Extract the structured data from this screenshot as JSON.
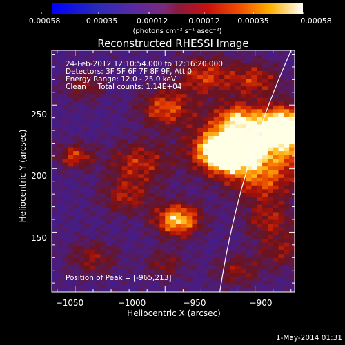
{
  "colorbar": {
    "ticks": [
      "−0.00058",
      "−0.00035",
      "−0.00012",
      "0.00012",
      "0.00035",
      "0.00058"
    ],
    "units": "(photons cm⁻² s⁻¹ asec⁻²)"
  },
  "chart_data": {
    "type": "heatmap",
    "title": "Reconstructed RHESSI Image",
    "xlabel": "Heliocentric X (arcsec)",
    "ylabel": "Heliocentric Y (arcsec)",
    "xlim": [
      -1063,
      -928
    ],
    "ylim": [
      103,
      293
    ],
    "xticks": [
      -1050,
      -1000,
      -950,
      -900
    ],
    "yticks": [
      150,
      200,
      250
    ],
    "xtick_labels": [
      "−1050",
      "−1000",
      "−950",
      "−900"
    ],
    "ytick_labels": [
      "150",
      "200",
      "250"
    ],
    "colorscale_range": [
      -0.00058,
      0.00058
    ],
    "peak": {
      "x": -965,
      "y": 213
    },
    "annotations": [
      "24-Feb-2012 12:10:54.000 to 12:16:20.000",
      "Detectors: 3F 5F 6F 7F 8F 9F, Att 0",
      "Energy Range: 12.0 - 25.0 keV",
      "Clean     Total counts: 1.14E+04"
    ],
    "peak_label": "Position of Peak = [-965,213]",
    "limb_visible": true
  },
  "footer": {
    "timestamp": "1-May-2014 01:31"
  }
}
